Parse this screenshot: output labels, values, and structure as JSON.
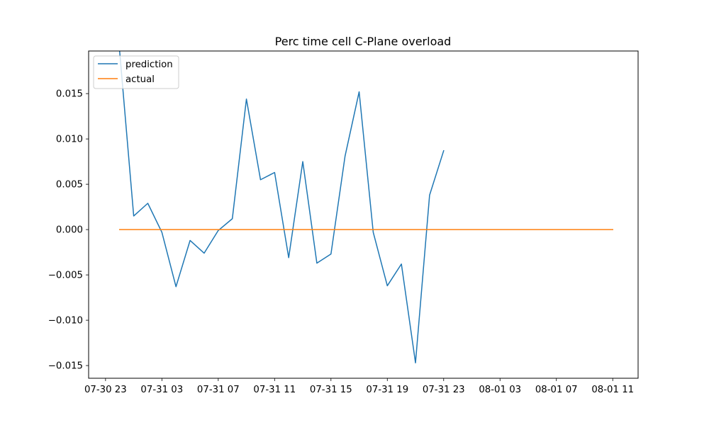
{
  "chart_data": {
    "type": "line",
    "title": "Perc time cell C-Plane overload",
    "xlabel": "",
    "ylabel": "",
    "x_tick_labels": [
      "07-30 23",
      "07-31 03",
      "07-31 07",
      "07-31 11",
      "07-31 15",
      "07-31 19",
      "07-31 23",
      "08-01 03",
      "08-01 07",
      "08-01 11"
    ],
    "x_tick_hours": [
      0,
      4,
      8,
      12,
      16,
      20,
      24,
      28,
      32,
      36
    ],
    "y_tick_labels": [
      "−0.015",
      "−0.010",
      "−0.005",
      "0.000",
      "0.005",
      "0.010",
      "0.015"
    ],
    "y_tick_values": [
      -0.015,
      -0.01,
      -0.005,
      0.0,
      0.005,
      0.01,
      0.015
    ],
    "xlim": [
      -1.2,
      37.8
    ],
    "ylim": [
      -0.0164,
      0.0197
    ],
    "grid": false,
    "legend_position": "upper left",
    "series": [
      {
        "name": "prediction",
        "color": "#1f77b4",
        "x": [
          1,
          2,
          3,
          4,
          5,
          6,
          7,
          8,
          9,
          10,
          11,
          12,
          13,
          14,
          15,
          16,
          17,
          18,
          19,
          20,
          21,
          22,
          23,
          24
        ],
        "values": [
          0.0197,
          0.0015,
          0.0029,
          -0.0003,
          -0.0063,
          -0.0012,
          -0.0026,
          -0.0001,
          0.0012,
          0.0144,
          0.0055,
          0.0063,
          -0.0031,
          0.0075,
          -0.0037,
          -0.0027,
          0.0081,
          0.0152,
          -0.0003,
          -0.0062,
          -0.0038,
          -0.0147,
          0.0038,
          0.0087
        ]
      },
      {
        "name": "actual",
        "color": "#ff7f0e",
        "x": [
          1,
          36
        ],
        "values": [
          0.0,
          0.0
        ]
      }
    ]
  }
}
